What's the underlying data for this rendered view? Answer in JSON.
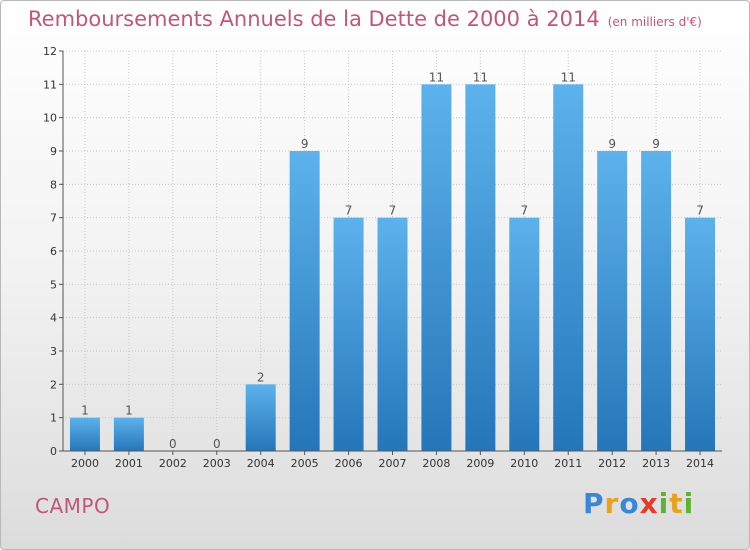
{
  "title": "Remboursements Annuels de la Dette de 2000 à 2014",
  "unit": "(en milliers d'€)",
  "commune": "CAMPO",
  "logo": {
    "letters": [
      "P",
      "r",
      "o",
      "x",
      "i",
      "t",
      "i"
    ],
    "colors": [
      "#3a87d8",
      "#e8a21c",
      "#3a87d8",
      "#e03c2c",
      "#5bb531",
      "#e8a21c",
      "#5bb531"
    ]
  },
  "colors": {
    "bar_top": "#5db2ec",
    "bar_bottom": "#2576b9",
    "title": "#c0577a"
  },
  "chart_data": {
    "type": "bar",
    "title": "Remboursements Annuels de la Dette de 2000 à 2014",
    "subtitle": "(en milliers d'€)",
    "categories": [
      "2000",
      "2001",
      "2002",
      "2003",
      "2004",
      "2005",
      "2006",
      "2007",
      "2008",
      "2009",
      "2010",
      "2011",
      "2012",
      "2013",
      "2014"
    ],
    "values": [
      1,
      1,
      0,
      0,
      2,
      9,
      7,
      7,
      11,
      11,
      7,
      11,
      9,
      9,
      7
    ],
    "ylim": [
      0,
      12
    ],
    "yticks": [
      0,
      1,
      2,
      3,
      4,
      5,
      6,
      7,
      8,
      9,
      10,
      11,
      12
    ],
    "grid": true,
    "data_labels": true
  }
}
